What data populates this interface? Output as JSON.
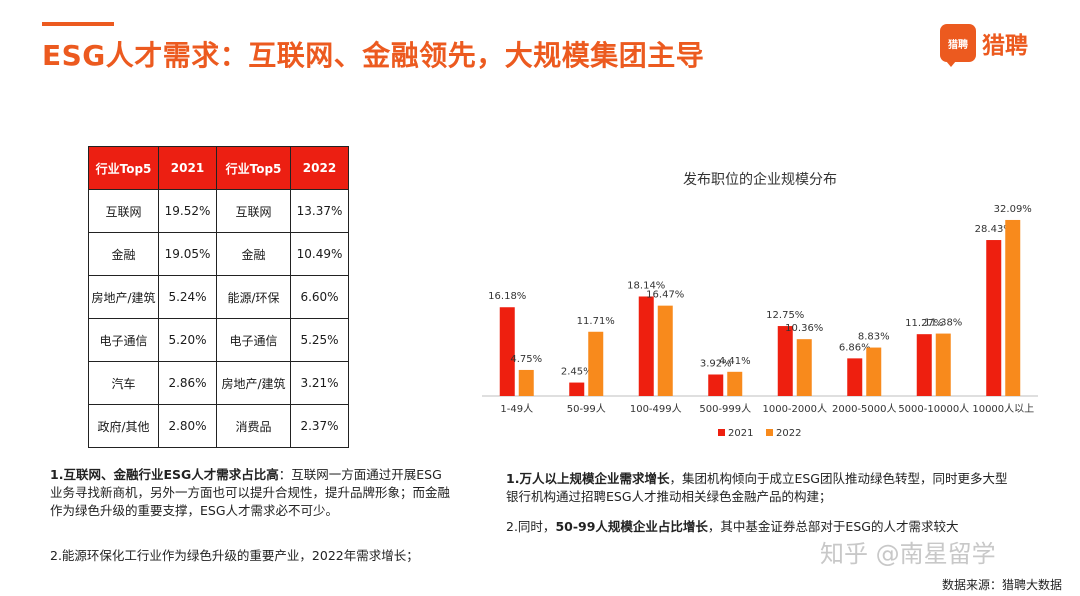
{
  "header": {
    "title": "ESG人才需求：互联网、金融领先，大规模集团主导",
    "brand_icon_text": "猎聘",
    "brand_name": "猎聘"
  },
  "table": {
    "headers": [
      "行业Top5",
      "2021",
      "行业Top5",
      "2022"
    ],
    "rows": [
      [
        "互联网",
        "19.52%",
        "互联网",
        "13.37%"
      ],
      [
        "金融",
        "19.05%",
        "金融",
        "10.49%"
      ],
      [
        "房地产/建筑",
        "5.24%",
        "能源/环保",
        "6.60%"
      ],
      [
        "电子通信",
        "5.20%",
        "电子通信",
        "5.25%"
      ],
      [
        "汽车",
        "2.86%",
        "房地产/建筑",
        "3.21%"
      ],
      [
        "政府/其他",
        "2.80%",
        "消费品",
        "2.37%"
      ]
    ]
  },
  "chart_data": {
    "type": "bar",
    "title": "发布职位的企业规模分布",
    "categories": [
      "1-49人",
      "50-99人",
      "100-499人",
      "500-999人",
      "1000-2000人",
      "2000-5000人",
      "5000-10000人",
      "10000人以上"
    ],
    "series": [
      {
        "name": "2021",
        "color": "#ee1f0f",
        "values": [
          16.18,
          2.45,
          18.14,
          3.92,
          12.75,
          6.86,
          11.27,
          28.43
        ],
        "labels": [
          "16.18%",
          "2.45%",
          "18.14%",
          "3.92%",
          "12.75%",
          "6.86%",
          "11.27%",
          "28.43%"
        ]
      },
      {
        "name": "2022",
        "color": "#f88a1c",
        "values": [
          4.75,
          11.71,
          16.47,
          4.41,
          10.36,
          8.83,
          11.38,
          32.09
        ],
        "labels": [
          "4.75%",
          "11.71%",
          "16.47%",
          "4.41%",
          "10.36%",
          "8.83%",
          "11.38%",
          "32.09%"
        ]
      }
    ],
    "ylim": [
      0,
      35
    ],
    "legend": "bottom",
    "grid": false
  },
  "notes": {
    "left1_bold": "1.互联网、金融行业ESG人才需求占比高",
    "left1_rest": "：互联网一方面通过开展ESG业务寻找新商机，另外一方面也可以提升合规性，提升品牌形象；而金融作为绿色升级的重要支撑，ESG人才需求必不可少。",
    "left2": "2.能源环保化工行业作为绿色升级的重要产业，2022年需求增长；",
    "right1_bold": "1.万人以上规模企业需求增长",
    "right1_rest": "，集团机构倾向于成立ESG团队推动绿色转型，同时更多大型银行机构通过招聘ESG人才推动相关绿色金融产品的构建；",
    "right2_pre": "2.同时，",
    "right2_bold": "50-99人规模企业占比增长",
    "right2_rest": "，其中基金证券总部对于ESG的人才需求较大"
  },
  "footer": {
    "watermark": "知乎 @南星留学",
    "source": "数据来源：猎聘大数据"
  }
}
